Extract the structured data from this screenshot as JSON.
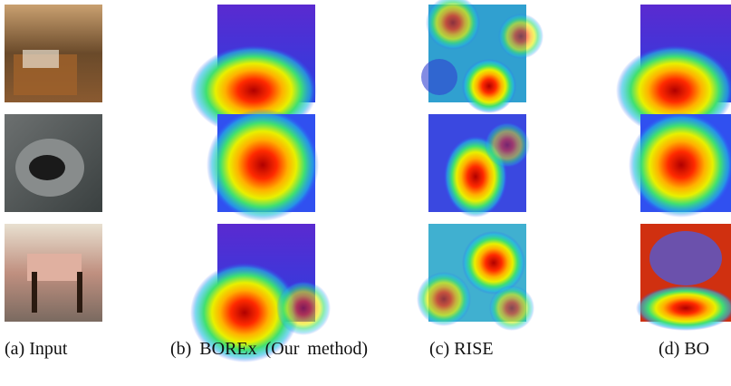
{
  "figure": {
    "captions": [
      "(a) Input",
      "(b) BOREx (Our method)",
      "(c) RISE",
      "(d) BO"
    ]
  }
}
